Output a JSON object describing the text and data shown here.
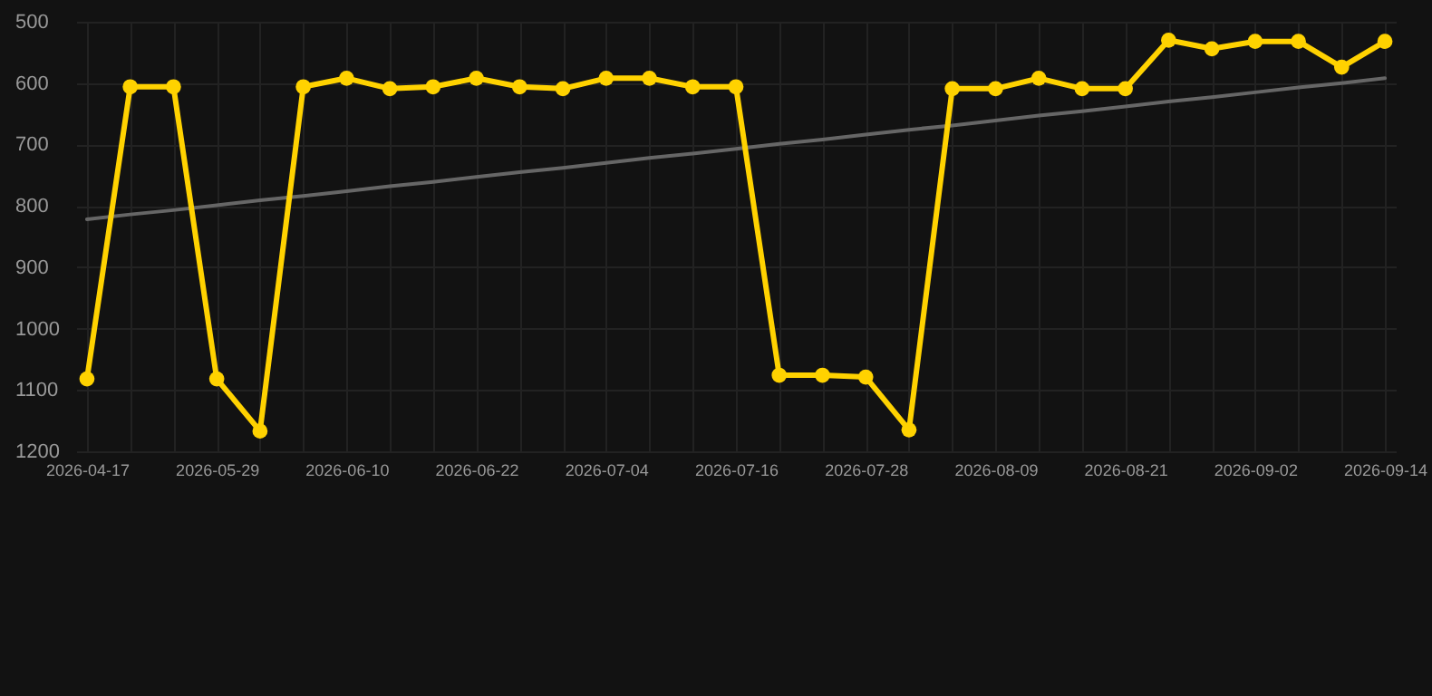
{
  "chart_data": {
    "type": "line",
    "categories": [
      "2026-04-17",
      null,
      null,
      "2026-05-29",
      null,
      null,
      "2026-06-10",
      null,
      null,
      "2026-06-22",
      null,
      null,
      "2026-07-04",
      null,
      null,
      "2026-07-16",
      null,
      null,
      "2026-07-28",
      null,
      null,
      "2026-08-09",
      null,
      null,
      "2026-08-21",
      null,
      null,
      "2026-09-02",
      null,
      null,
      "2026-09-14"
    ],
    "series": [
      {
        "color": "#ffd200",
        "marker": "circle",
        "values": [
          1082,
          606,
          606,
          1082,
          1167,
          606,
          592,
          609,
          606,
          592,
          606,
          609,
          592,
          592,
          606,
          606,
          1076,
          1076,
          1079,
          1165,
          609,
          609,
          592,
          609,
          609,
          530,
          544,
          532,
          532,
          574,
          532
        ]
      },
      {
        "type": "line",
        "color": "#666666",
        "marker": "none",
        "values": [
          822,
          814,
          807,
          799,
          791,
          784,
          776,
          768,
          761,
          753,
          745,
          738,
          730,
          722,
          715,
          707,
          699,
          692,
          684,
          676,
          669,
          661,
          653,
          646,
          638,
          630,
          623,
          615,
          607,
          600,
          592
        ]
      }
    ],
    "ylim": [
      1200,
      500
    ],
    "yticks": [
      500,
      600,
      700,
      800,
      900,
      1000,
      1100,
      1200
    ],
    "grid": true
  }
}
